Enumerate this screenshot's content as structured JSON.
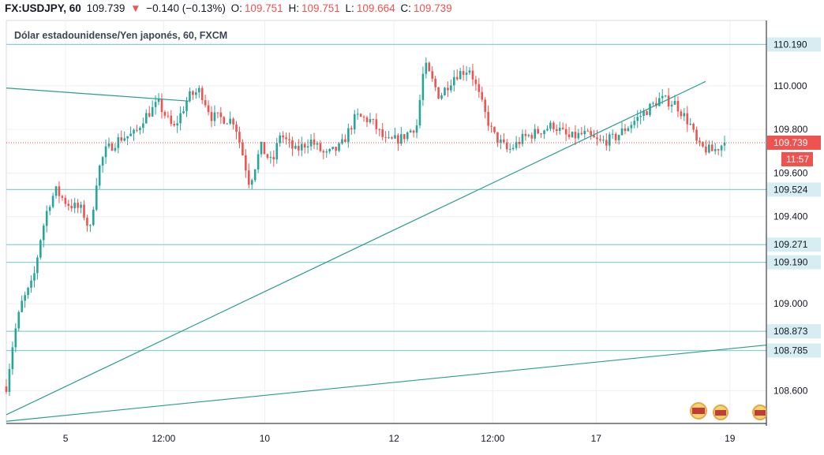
{
  "header": {
    "symbol": "FX:USDJPY, 60",
    "price": "109.739",
    "change_arrow": "▼",
    "change": "−0.140 (−0.13%)",
    "o_label": "O:",
    "o_value": "109.751",
    "h_label": "H:",
    "h_value": "109.751",
    "l_label": "L:",
    "l_value": "109.664",
    "c_label": "C:",
    "c_value": "109.739"
  },
  "subtitle": "Dólar estadounidense/Yen japonés, 60, FXCM",
  "colors": {
    "up": "#26a69a",
    "down": "#ef5350",
    "hline": "#8bcfd6",
    "trend": "#2a9d8f",
    "label_bg": "#d6eef1",
    "price_bg": "#ef5350",
    "grid": "#eceff2"
  },
  "chart_data": {
    "type": "candlestick",
    "title": "Dólar estadounidense/Yen japonés, 60, FXCM",
    "ylim": [
      108.45,
      110.3
    ],
    "y_ticks": [
      "110.000",
      "109.800",
      "109.600",
      "109.400",
      "109.000",
      "108.600"
    ],
    "x_ticks": [
      "5",
      "12:00",
      "10",
      "12",
      "12:00",
      "17",
      "19"
    ],
    "horizontal_levels": [
      "110.190",
      "109.524",
      "109.271",
      "109.190",
      "108.873",
      "108.785"
    ],
    "current_price": "109.739",
    "countdown": "11:57",
    "grid": true,
    "trendlines": [
      {
        "name": "descending",
        "from": [
          0.0,
          109.99
        ],
        "to": [
          0.24,
          109.93
        ]
      },
      {
        "name": "rising-steep",
        "from": [
          0.0,
          108.49
        ],
        "to": [
          0.92,
          110.02
        ]
      },
      {
        "name": "rising-shallow",
        "from": [
          0.0,
          108.46
        ],
        "to": [
          1.0,
          108.81
        ]
      }
    ],
    "anchors": [
      [
        0.0,
        108.62
      ],
      [
        0.01,
        108.85
      ],
      [
        0.02,
        109.0
      ],
      [
        0.035,
        109.1
      ],
      [
        0.045,
        109.3
      ],
      [
        0.055,
        109.45
      ],
      [
        0.065,
        109.52
      ],
      [
        0.08,
        109.46
      ],
      [
        0.1,
        109.43
      ],
      [
        0.11,
        109.33
      ],
      [
        0.12,
        109.6
      ],
      [
        0.13,
        109.7
      ],
      [
        0.15,
        109.76
      ],
      [
        0.17,
        109.78
      ],
      [
        0.18,
        109.85
      ],
      [
        0.2,
        109.92
      ],
      [
        0.22,
        109.8
      ],
      [
        0.24,
        109.95
      ],
      [
        0.255,
        109.98
      ],
      [
        0.27,
        109.86
      ],
      [
        0.3,
        109.84
      ],
      [
        0.31,
        109.7
      ],
      [
        0.32,
        109.55
      ],
      [
        0.335,
        109.72
      ],
      [
        0.35,
        109.64
      ],
      [
        0.36,
        109.78
      ],
      [
        0.38,
        109.7
      ],
      [
        0.4,
        109.75
      ],
      [
        0.42,
        109.68
      ],
      [
        0.44,
        109.72
      ],
      [
        0.46,
        109.86
      ],
      [
        0.48,
        109.84
      ],
      [
        0.5,
        109.74
      ],
      [
        0.52,
        109.76
      ],
      [
        0.54,
        109.82
      ],
      [
        0.55,
        110.1
      ],
      [
        0.57,
        109.95
      ],
      [
        0.59,
        110.05
      ],
      [
        0.61,
        110.08
      ],
      [
        0.63,
        109.87
      ],
      [
        0.64,
        109.78
      ],
      [
        0.66,
        109.7
      ],
      [
        0.68,
        109.76
      ],
      [
        0.7,
        109.79
      ],
      [
        0.72,
        109.82
      ],
      [
        0.74,
        109.76
      ],
      [
        0.76,
        109.78
      ],
      [
        0.78,
        109.74
      ],
      [
        0.8,
        109.76
      ],
      [
        0.82,
        109.82
      ],
      [
        0.84,
        109.88
      ],
      [
        0.86,
        109.94
      ],
      [
        0.88,
        109.92
      ],
      [
        0.9,
        109.82
      ],
      [
        0.91,
        109.72
      ],
      [
        0.93,
        109.7
      ],
      [
        0.945,
        109.74
      ]
    ]
  }
}
